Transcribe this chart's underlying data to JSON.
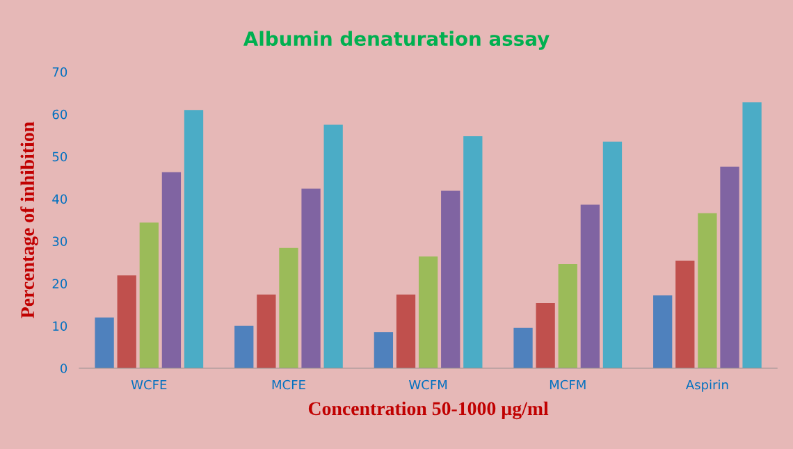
{
  "chart_data": {
    "type": "bar",
    "title": "Albumin denaturation assay",
    "xlabel": "Concentration 50-1000 µg/ml",
    "ylabel": "Percentage of inhibition",
    "categories": [
      "WCFE",
      "MCFE",
      "WCFM",
      "MCFM",
      "Aspirin"
    ],
    "series": [
      {
        "color": "#4f81bd",
        "values": [
          12.0,
          10.0,
          8.5,
          9.5,
          17.2
        ]
      },
      {
        "color": "#c0504d",
        "values": [
          21.9,
          17.4,
          17.4,
          15.4,
          25.4
        ]
      },
      {
        "color": "#9bbb59",
        "values": [
          34.4,
          28.4,
          26.4,
          24.6,
          36.6
        ]
      },
      {
        "color": "#8064a2",
        "values": [
          46.3,
          42.4,
          41.9,
          38.6,
          47.6
        ]
      },
      {
        "color": "#4bacc6",
        "values": [
          61.0,
          57.5,
          54.8,
          53.5,
          62.8
        ]
      }
    ],
    "ylim": [
      0,
      70
    ],
    "yticks": [
      0,
      10,
      20,
      30,
      40,
      50,
      60,
      70
    ],
    "grid": false,
    "legend": false
  }
}
